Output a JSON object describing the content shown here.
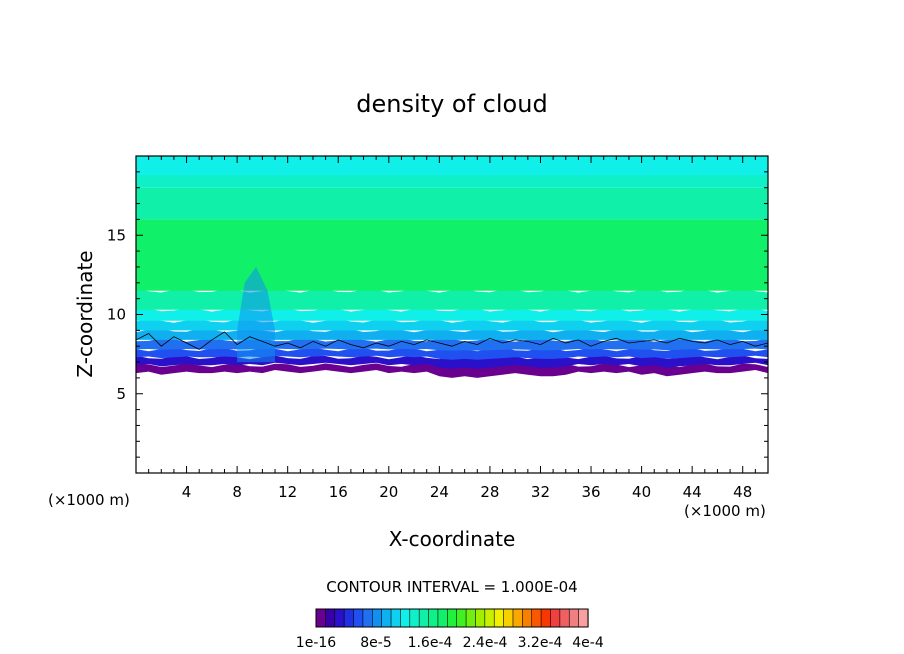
{
  "chart_data": {
    "type": "heatmap",
    "title": "density of cloud",
    "xlabel": "X-coordinate",
    "ylabel": "Z-coordinate",
    "x_unit": "(×1000 m)",
    "y_unit": "(×1000 m)",
    "xlim": [
      0,
      50
    ],
    "ylim": [
      0,
      20
    ],
    "x_ticks": [
      4,
      8,
      12,
      16,
      20,
      24,
      28,
      32,
      36,
      40,
      44,
      48
    ],
    "y_ticks": [
      5,
      10,
      15
    ],
    "contour_interval_text": "CONTOUR INTERVAL = 1.000E-04",
    "colorbar": {
      "colors": [
        "#6a0090",
        "#3a00a8",
        "#2a10c8",
        "#2030e0",
        "#2050f0",
        "#2070f0",
        "#1090f0",
        "#10b0f0",
        "#10d0f0",
        "#10f0e8",
        "#10f0c8",
        "#10f0a8",
        "#10f088",
        "#10f068",
        "#20f040",
        "#40f020",
        "#70f010",
        "#a0f000",
        "#c8f000",
        "#f0f000",
        "#f8d000",
        "#f8a800",
        "#f88000",
        "#f85800",
        "#f83800",
        "#f04040",
        "#f06060",
        "#f08080",
        "#f8a0a0"
      ],
      "labels": [
        "1e-16",
        "8e-5",
        "1.6e-4",
        "2.4e-4",
        "3.2e-4",
        "4e-4"
      ]
    },
    "cloud_base_z": [
      6.3,
      6.4,
      6.2,
      6.3,
      6.4,
      6.3,
      6.3,
      6.4,
      6.3,
      6.4,
      6.3,
      6.5,
      6.4,
      6.3,
      6.4,
      6.5,
      6.4,
      6.3,
      6.4,
      6.5,
      6.3,
      6.4,
      6.3,
      6.4,
      6.1,
      6.0,
      6.1,
      6.0,
      6.1,
      6.2,
      6.3,
      6.2,
      6.1,
      6.1,
      6.2,
      6.4,
      6.3,
      6.4,
      6.3,
      6.4,
      6.2,
      6.3,
      6.1,
      6.2,
      6.3,
      6.4,
      6.3,
      6.3,
      6.4,
      6.5,
      6.3
    ],
    "contour_z": [
      8.4,
      8.8,
      8.0,
      8.6,
      8.2,
      7.8,
      8.4,
      8.9,
      8.1,
      8.6,
      8.3,
      8.0,
      8.2,
      7.9,
      8.3,
      8.0,
      8.4,
      8.1,
      7.9,
      8.2,
      8.0,
      8.3,
      8.1,
      8.4,
      8.2,
      8.0,
      8.3,
      8.1,
      8.5,
      8.2,
      8.4,
      8.3,
      8.1,
      8.5,
      8.2,
      8.4,
      8.0,
      8.3,
      8.5,
      8.2,
      8.3,
      8.4,
      8.2,
      8.5,
      8.3,
      8.2,
      8.4,
      8.1,
      8.3,
      8.0,
      8.2
    ],
    "vertical_bands": [
      {
        "z": [
          0.0,
          6.3
        ],
        "level": -1
      },
      {
        "z": [
          6.3,
          6.8
        ],
        "level": 0
      },
      {
        "z": [
          6.8,
          7.3
        ],
        "level": 2
      },
      {
        "z": [
          7.3,
          7.8
        ],
        "level": 4
      },
      {
        "z": [
          7.8,
          8.4
        ],
        "level": 5
      },
      {
        "z": [
          8.4,
          9.0
        ],
        "level": 7
      },
      {
        "z": [
          9.0,
          9.6
        ],
        "level": 8
      },
      {
        "z": [
          9.6,
          10.3
        ],
        "level": 9
      },
      {
        "z": [
          10.3,
          11.5
        ],
        "level": 11
      },
      {
        "z": [
          11.5,
          16.0
        ],
        "level": 13
      },
      {
        "z": [
          16.0,
          18.0
        ],
        "level": 11
      },
      {
        "z": [
          18.0,
          18.8
        ],
        "level": 10
      },
      {
        "z": [
          18.8,
          20.0
        ],
        "level": 9
      }
    ]
  }
}
